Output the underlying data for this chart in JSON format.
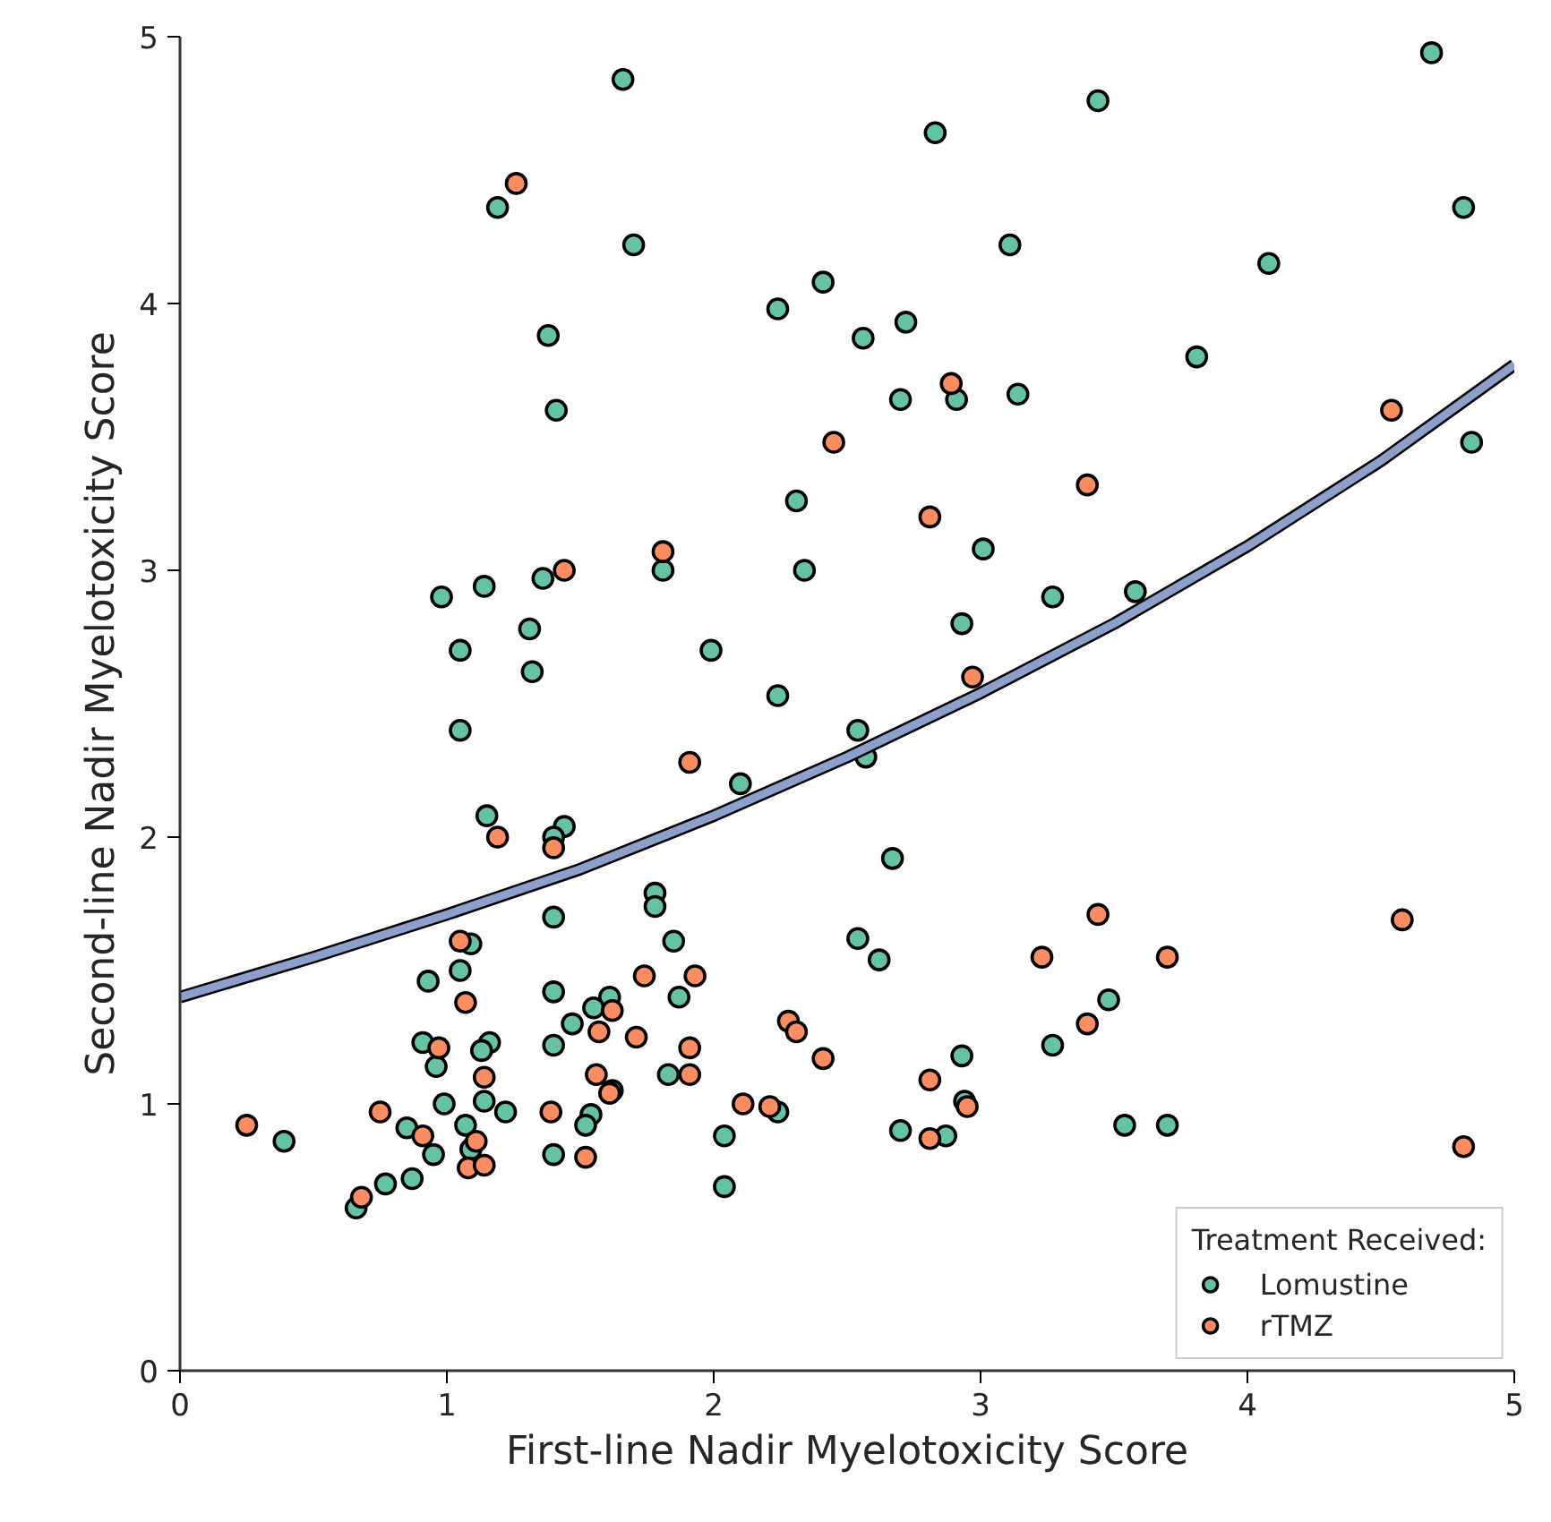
{
  "chart_data": {
    "type": "scatter",
    "xlabel": "First-line Nadir Myelotoxicity Score",
    "ylabel": "Second-line Nadir Myelotoxicity Score",
    "legend_title": "Treatment Received:",
    "legend": "bottom right",
    "grid": false,
    "marker": "circle",
    "xlim": [
      0,
      5
    ],
    "ylim": [
      0,
      5
    ],
    "xticks": [
      0,
      1,
      2,
      3,
      4,
      5
    ],
    "yticks": [
      0,
      1,
      2,
      3,
      4,
      5
    ],
    "series": [
      {
        "name": "Lomustine",
        "color": "#66c2a5",
        "x": [
          1.66,
          4.69,
          1.19,
          1.7,
          2.83,
          3.44,
          4.81,
          2.41,
          2.24,
          1.38,
          2.72,
          2.56,
          2.91,
          2.7,
          3.14,
          3.81,
          4.08,
          3.11,
          4.84,
          3.01,
          3.27,
          3.58,
          2.93,
          1.41,
          2.31,
          1.81,
          2.34,
          1.36,
          1.14,
          0.98,
          1.31,
          1.05,
          1.99,
          1.32,
          2.24,
          1.05,
          2.1,
          2.54,
          2.57,
          1.15,
          1.44,
          1.4,
          1.78,
          1.78,
          1.4,
          1.85,
          1.09,
          1.05,
          0.93,
          1.4,
          1.87,
          1.61,
          1.55,
          1.47,
          0.91,
          0.96,
          1.16,
          1.13,
          1.4,
          1.83,
          1.62,
          2.24,
          2.04,
          2.04,
          0.99,
          1.14,
          1.22,
          1.07,
          1.54,
          1.52,
          1.4,
          0.39,
          0.85,
          0.95,
          1.09,
          0.87,
          0.77,
          0.66,
          2.67,
          2.54,
          2.62,
          3.48,
          3.27,
          2.93,
          2.94,
          2.7,
          2.87,
          3.54,
          3.7
        ],
        "values": [
          4.84,
          4.94,
          4.36,
          4.22,
          4.64,
          4.76,
          4.36,
          4.08,
          3.98,
          3.88,
          3.93,
          3.87,
          3.64,
          3.64,
          3.66,
          3.8,
          4.15,
          4.22,
          3.48,
          3.08,
          2.9,
          2.92,
          2.8,
          3.6,
          3.26,
          3.0,
          3.0,
          2.97,
          2.94,
          2.9,
          2.78,
          2.7,
          2.7,
          2.62,
          2.53,
          2.4,
          2.2,
          2.4,
          2.3,
          2.08,
          2.04,
          2.0,
          1.79,
          1.74,
          1.7,
          1.61,
          1.6,
          1.5,
          1.46,
          1.42,
          1.4,
          1.4,
          1.36,
          1.3,
          1.23,
          1.14,
          1.23,
          1.2,
          1.22,
          1.11,
          1.05,
          0.97,
          0.88,
          0.69,
          1.0,
          1.01,
          0.97,
          0.92,
          0.96,
          0.92,
          0.81,
          0.86,
          0.91,
          0.81,
          0.83,
          0.72,
          0.7,
          0.61,
          1.92,
          1.62,
          1.54,
          1.39,
          1.22,
          1.18,
          1.01,
          0.9,
          0.88,
          0.92,
          0.92
        ]
      },
      {
        "name": "rTMZ",
        "color": "#fc8d62",
        "x": [
          1.26,
          2.89,
          2.45,
          4.54,
          2.81,
          3.4,
          2.97,
          1.81,
          1.44,
          1.91,
          1.19,
          1.4,
          1.05,
          1.07,
          1.74,
          1.93,
          1.62,
          1.57,
          1.71,
          0.97,
          1.14,
          1.91,
          1.91,
          1.56,
          1.61,
          2.28,
          2.31,
          2.41,
          2.11,
          2.21,
          0.75,
          1.39,
          1.52,
          0.25,
          0.91,
          1.11,
          1.08,
          1.14,
          0.68,
          3.44,
          4.58,
          3.23,
          3.7,
          3.4,
          2.81,
          2.95,
          2.81,
          4.81
        ],
        "values": [
          4.45,
          3.7,
          3.48,
          3.6,
          3.2,
          3.32,
          2.6,
          3.07,
          3.0,
          2.28,
          2.0,
          1.96,
          1.61,
          1.38,
          1.48,
          1.48,
          1.35,
          1.27,
          1.25,
          1.21,
          1.1,
          1.21,
          1.11,
          1.11,
          1.04,
          1.31,
          1.27,
          1.17,
          1.0,
          0.99,
          0.97,
          0.97,
          0.8,
          0.92,
          0.88,
          0.86,
          0.76,
          0.77,
          0.65,
          1.71,
          1.69,
          1.55,
          1.55,
          1.3,
          1.09,
          0.99,
          0.87,
          0.84
        ]
      },
      {
        "type": "line",
        "marker": "none",
        "color": "#8da0cb",
        "x": [
          0,
          0.5,
          1,
          1.5,
          2,
          2.5,
          3,
          3.5,
          4,
          4.5,
          5
        ],
        "values": [
          1.4,
          1.55,
          1.71,
          1.88,
          2.08,
          2.3,
          2.54,
          2.8,
          3.09,
          3.41,
          3.77
        ]
      }
    ]
  }
}
